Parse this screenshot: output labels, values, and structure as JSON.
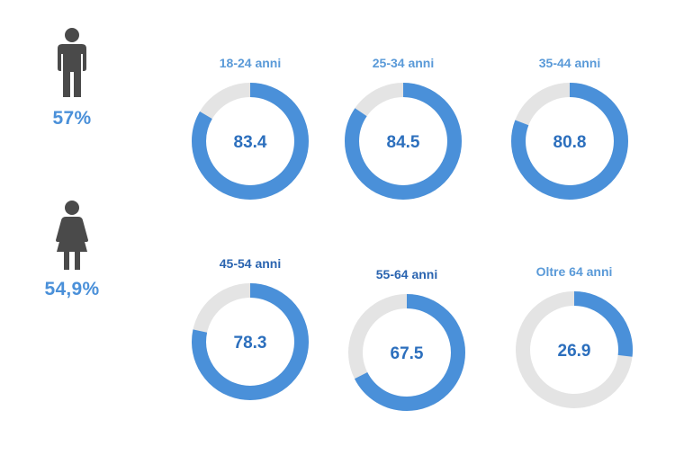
{
  "gender_stats": {
    "male_value": "57%",
    "female_value": "54,9%"
  },
  "chart_data": {
    "type": "pie",
    "subtype": "donut",
    "max": 100,
    "categories": [
      "18-24 anni",
      "25-34 anni",
      "35-44 anni",
      "45-54 anni",
      "55-64 anni",
      "Oltre 64 anni"
    ],
    "values": [
      83.4,
      84.5,
      80.8,
      78.3,
      67.5,
      26.9
    ],
    "value_labels": [
      "83.4",
      "84.5",
      "80.8",
      "78.3",
      "67.5",
      "26.9"
    ]
  },
  "colors": {
    "fill": "#4a90d9",
    "track": "#e4e4e4",
    "value_text": "#2c6fbd",
    "label_light": "#5a9ad8",
    "label_dark": "#2a64b0",
    "icon": "#4a4a4a",
    "percent_text": "#4a90d9"
  },
  "icons": [
    "male-icon",
    "female-icon"
  ]
}
